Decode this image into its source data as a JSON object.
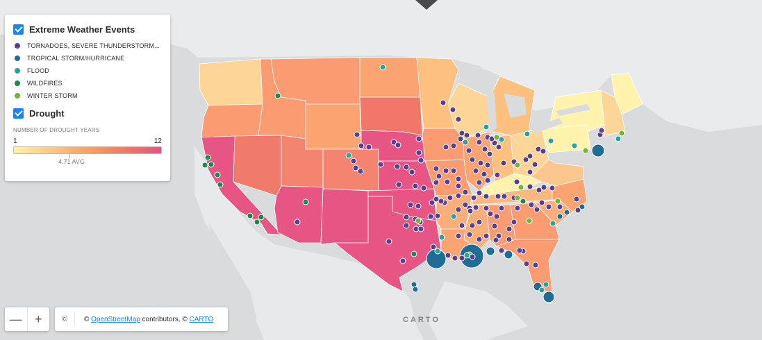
{
  "legend": {
    "events_title": "Extreme Weather Events",
    "event_types": [
      {
        "label": "TORNADOES, SEVERE THUNDERSTORM...",
        "color": "#5b3f8c"
      },
      {
        "label": "TROPICAL STORM/HURRICANE",
        "color": "#1f6d96"
      },
      {
        "label": "FLOOD",
        "color": "#2aa29b"
      },
      {
        "label": "WILDFIRES",
        "color": "#1b8a4e"
      },
      {
        "label": "WINTER STORM",
        "color": "#76b041"
      }
    ],
    "drought_title": "Drought",
    "ramp_title": "NUMBER OF DROUGHT YEARS",
    "ramp_min": "1",
    "ramp_max": "12",
    "ramp_avg": "4.71 AVG",
    "ramp_colors": [
      "#fff3ae",
      "#fbc78e",
      "#f8a06a",
      "#f17869",
      "#e65583"
    ]
  },
  "zoom": {
    "out_label": "—",
    "in_label": "+"
  },
  "attribution": {
    "info_icon": "info-icon",
    "prefix": "© ",
    "osm_link": "OpenStreetMap",
    "middle": " contributors, © ",
    "carto_link": "CARTO"
  },
  "watermark": "CARTO"
}
